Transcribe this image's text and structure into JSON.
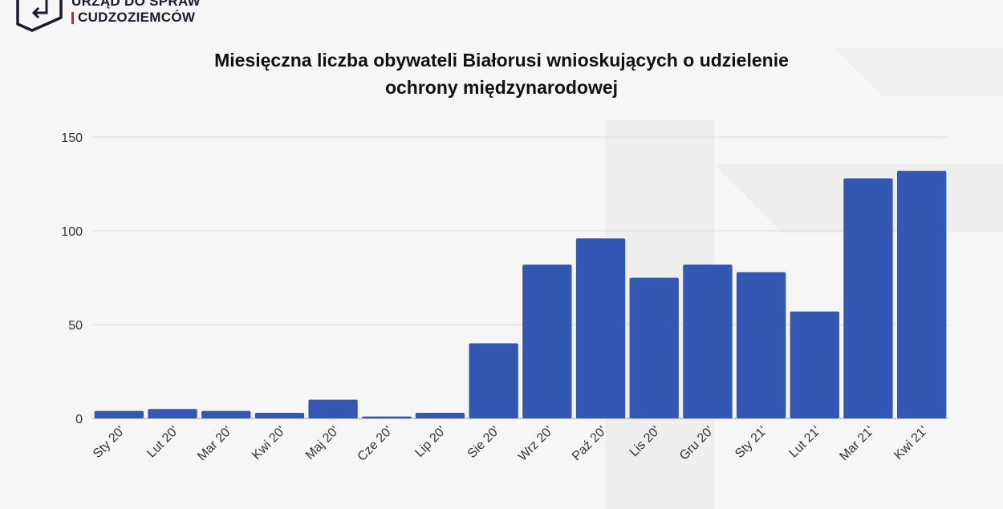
{
  "logo": {
    "line1": "URZĄD DO SPRAW",
    "line2": "CUDZOZIEMCÓW",
    "accent_color": "#d4212f"
  },
  "chart_data": {
    "type": "bar",
    "title": [
      "Miesięczna liczba obywateli Białorusi wnioskujących o udzielenie",
      "ochrony międzynarodowej"
    ],
    "categories": [
      "Sty 20'",
      "Lut 20'",
      "Mar 20'",
      "Kwi 20'",
      "Maj 20'",
      "Cze 20'",
      "Lip 20'",
      "Sie 20'",
      "Wrz 20'",
      "Paź 20'",
      "Lis 20'",
      "Gru 20'",
      "Sty 21'",
      "Lut 21'",
      "Mar 21'",
      "Kwi 21'"
    ],
    "values": [
      4,
      5,
      4,
      3,
      10,
      1,
      3,
      40,
      82,
      96,
      75,
      82,
      78,
      57,
      128,
      132
    ],
    "xlabel": "",
    "ylabel": "",
    "ylim": [
      0,
      150
    ],
    "yticks": [
      0,
      50,
      100,
      150
    ],
    "grid": true,
    "bar_color": "#3357b2"
  }
}
